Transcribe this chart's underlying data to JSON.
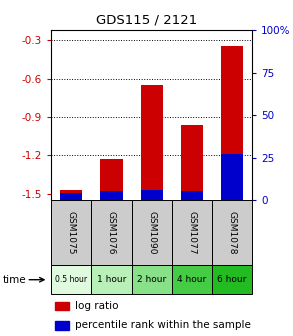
{
  "title": "GDS115 / 2121",
  "samples": [
    "GSM1075",
    "GSM1076",
    "GSM1090",
    "GSM1077",
    "GSM1078"
  ],
  "time_labels": [
    "0.5 hour",
    "1 hour",
    "2 hour",
    "4 hour",
    "6 hour"
  ],
  "log_ratios": [
    -1.47,
    -1.23,
    -0.65,
    -0.96,
    -0.34
  ],
  "percentile_ranks": [
    4,
    5,
    6,
    5,
    27
  ],
  "ylim_left": [
    -1.55,
    -0.22
  ],
  "ylim_right": [
    0,
    100
  ],
  "left_ticks": [
    -1.5,
    -1.2,
    -0.9,
    -0.6,
    -0.3
  ],
  "right_ticks": [
    0,
    25,
    50,
    75,
    100
  ],
  "bar_color_red": "#cc0000",
  "bar_color_blue": "#0000cc",
  "time_greens": [
    "#dffadf",
    "#b8f0b8",
    "#88e088",
    "#44cc44",
    "#22bb22"
  ],
  "sample_bg_color": "#cccccc",
  "title_color": "#000000",
  "left_axis_color": "#cc0000",
  "right_axis_color": "#0000cc",
  "legend_red_label": "log ratio",
  "legend_blue_label": "percentile rank within the sample",
  "bar_width": 0.55
}
